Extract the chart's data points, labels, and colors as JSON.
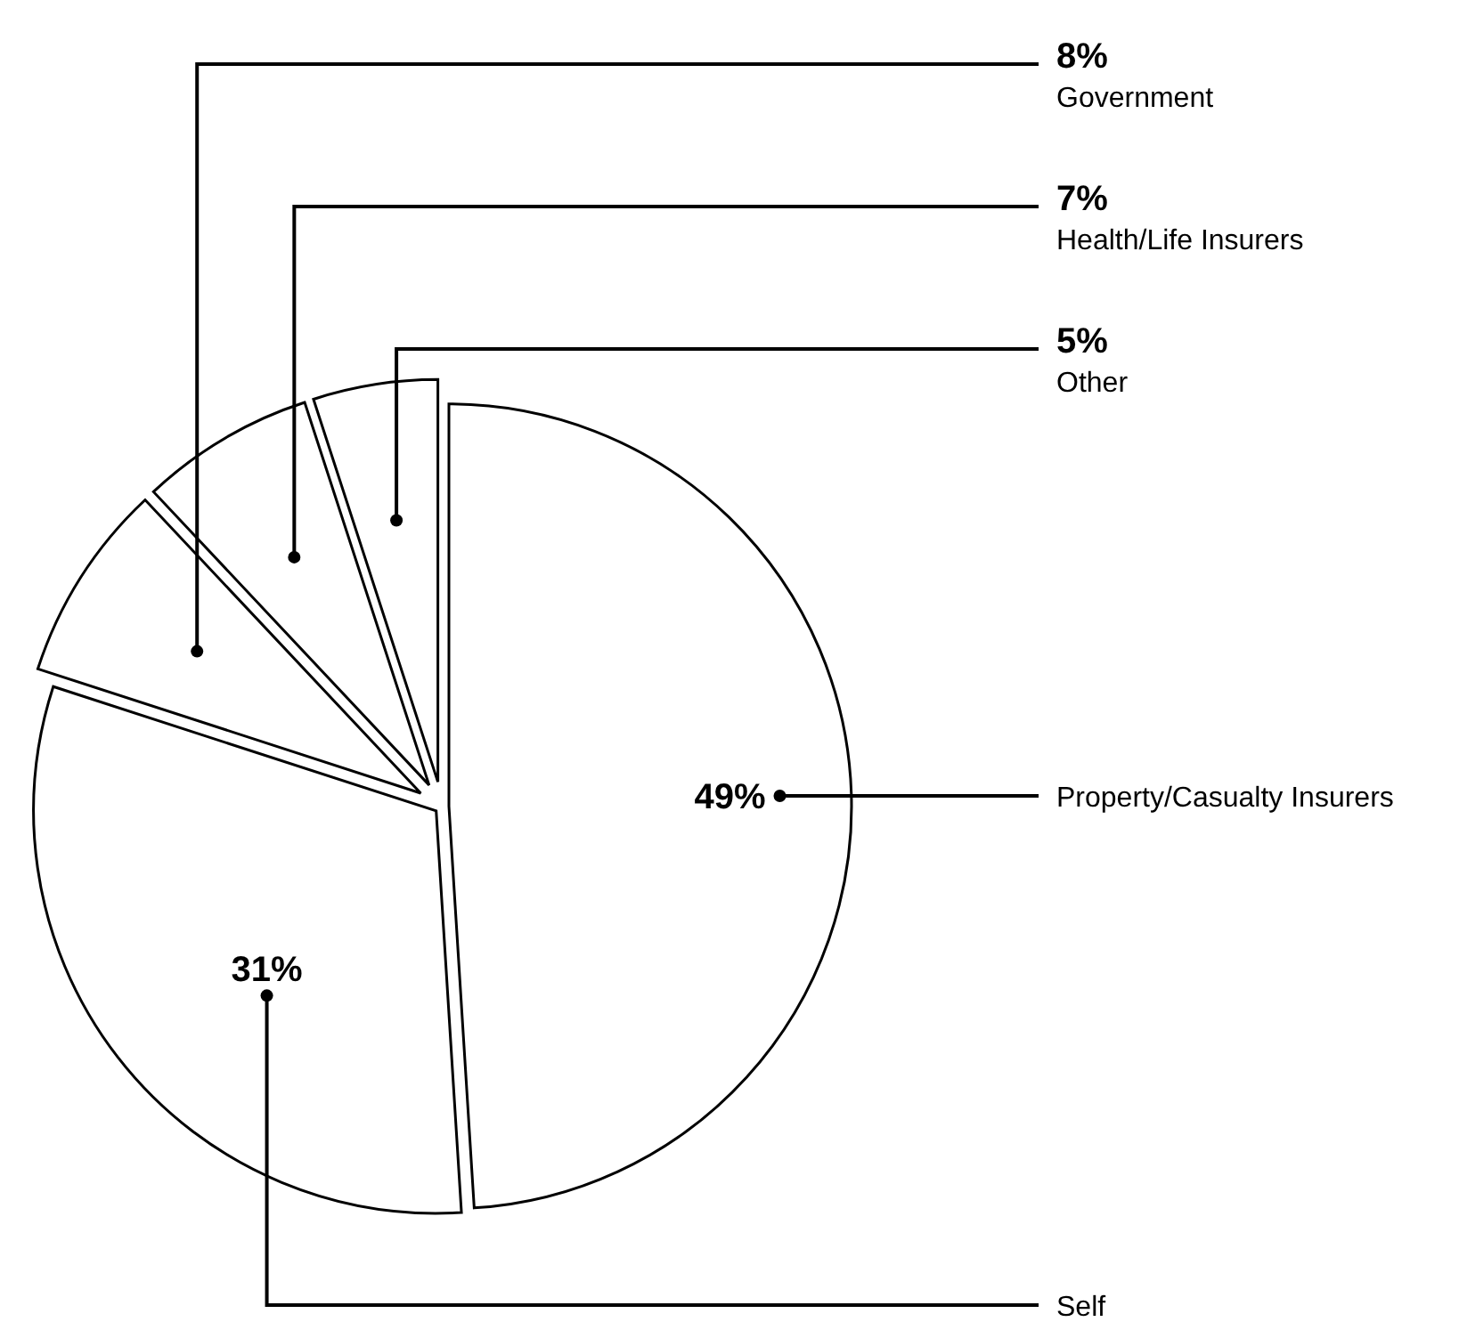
{
  "chart_data": {
    "type": "pie",
    "categories": [
      "Property/Casualty Insurers",
      "Self",
      "Government",
      "Health/Life Insurers",
      "Other"
    ],
    "values": [
      49,
      31,
      8,
      7,
      5
    ],
    "colors": [
      "#ffffff",
      "#ffffff",
      "#ffffff",
      "#ffffff",
      "#ffffff"
    ],
    "value_labels": [
      "49%",
      "31%",
      "8%",
      "7%",
      "5%"
    ]
  }
}
